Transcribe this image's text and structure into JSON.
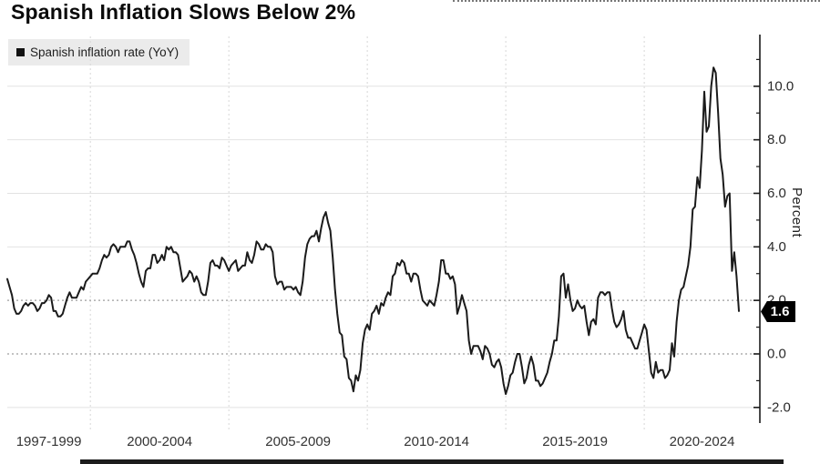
{
  "page": {
    "title": "Spanish Inflation Slows Below 2%"
  },
  "legend": {
    "marker": "black-square",
    "label": "Spanish inflation rate (YoY)"
  },
  "axes": {
    "y_title": "Percent",
    "y_tick_labels": [
      "10.0",
      "8.0",
      "6.0",
      "4.0",
      "2.0",
      "0.0",
      "-2.0"
    ],
    "y_tick_values": [
      10,
      8,
      6,
      4,
      2,
      0,
      -2
    ],
    "y_minor_tick_values": [
      11,
      9,
      7,
      5,
      3,
      1,
      -1
    ],
    "dotted_reference_values": [
      2,
      0
    ],
    "x_labels": [
      "1997-1999",
      "2000-2004",
      "2005-2009",
      "2010-2014",
      "2015-2019",
      "2020-2024"
    ],
    "x_gridline_years": [
      2000,
      2005,
      2010,
      2015,
      2020
    ]
  },
  "last_point": {
    "label": "1.6",
    "value": 1.6
  },
  "colors": {
    "line": "#1b1b1b",
    "axis": "#1b1b1b",
    "grid_solid": "#e2e2e2",
    "grid_dotted": "#9e9e9e",
    "grid_vertical": "#d7d7d7",
    "tick_text": "#2a2a2a",
    "badge_bg": "#000000",
    "badge_text": "#ffffff",
    "legend_bg": "#ebebeb"
  },
  "chart_data": {
    "type": "line",
    "title": "Spanish Inflation Slows Below 2%",
    "series_name": "Spanish inflation rate (YoY)",
    "ylabel": "Percent",
    "frequency": "monthly",
    "x_start": "1997-01",
    "x_end": "2023-06",
    "ylim": [
      -2.6,
      11.9
    ],
    "grid": true,
    "legend_position": "top-left",
    "values": [
      2.8,
      2.5,
      2.2,
      1.7,
      1.5,
      1.5,
      1.6,
      1.8,
      1.9,
      1.8,
      1.9,
      1.9,
      1.8,
      1.6,
      1.7,
      1.9,
      1.9,
      2.0,
      2.2,
      2.1,
      1.6,
      1.6,
      1.4,
      1.4,
      1.5,
      1.8,
      2.1,
      2.3,
      2.1,
      2.1,
      2.1,
      2.3,
      2.5,
      2.4,
      2.7,
      2.8,
      2.9,
      3.0,
      3.0,
      3.0,
      3.2,
      3.5,
      3.7,
      3.6,
      3.7,
      4.0,
      4.1,
      4.0,
      3.8,
      4.0,
      4.0,
      4.0,
      4.2,
      4.2,
      3.9,
      3.7,
      3.4,
      3.0,
      2.7,
      2.5,
      3.1,
      3.2,
      3.2,
      3.7,
      3.7,
      3.4,
      3.5,
      3.7,
      3.5,
      4.0,
      3.9,
      4.0,
      3.8,
      3.8,
      3.7,
      3.2,
      2.7,
      2.8,
      2.9,
      3.1,
      3.0,
      2.7,
      2.9,
      2.7,
      2.3,
      2.2,
      2.2,
      2.7,
      3.4,
      3.5,
      3.3,
      3.3,
      3.2,
      3.6,
      3.5,
      3.3,
      3.1,
      3.3,
      3.4,
      3.5,
      3.1,
      3.2,
      3.3,
      3.3,
      3.8,
      3.5,
      3.4,
      3.7,
      4.2,
      4.1,
      3.9,
      3.9,
      4.1,
      4.0,
      4.0,
      3.8,
      2.9,
      2.6,
      2.7,
      2.7,
      2.4,
      2.5,
      2.5,
      2.5,
      2.4,
      2.5,
      2.3,
      2.2,
      2.7,
      3.6,
      4.1,
      4.3,
      4.4,
      4.4,
      4.6,
      4.2,
      4.7,
      5.1,
      5.3,
      4.9,
      4.6,
      3.6,
      2.4,
      1.5,
      0.8,
      0.7,
      -0.1,
      -0.2,
      -0.9,
      -1.0,
      -1.4,
      -0.8,
      -1.0,
      -0.6,
      0.4,
      0.9,
      1.1,
      0.9,
      1.5,
      1.6,
      1.8,
      1.5,
      1.9,
      1.8,
      2.1,
      2.3,
      2.2,
      2.9,
      3.0,
      3.4,
      3.3,
      3.5,
      3.4,
      3.0,
      3.0,
      2.7,
      3.0,
      3.0,
      2.9,
      2.4,
      2.0,
      1.9,
      1.8,
      2.0,
      1.9,
      1.8,
      2.2,
      2.7,
      3.5,
      3.5,
      3.0,
      3.0,
      2.8,
      2.9,
      2.6,
      1.5,
      1.8,
      2.2,
      1.9,
      1.6,
      0.5,
      0.0,
      0.3,
      0.3,
      0.3,
      0.1,
      -0.2,
      0.3,
      0.2,
      0.0,
      -0.4,
      -0.5,
      -0.3,
      -0.2,
      -0.5,
      -1.1,
      -1.5,
      -1.2,
      -0.8,
      -0.7,
      -0.3,
      0.0,
      0.0,
      -0.5,
      -1.1,
      -0.9,
      -0.4,
      -0.1,
      -0.4,
      -1.0,
      -1.0,
      -1.2,
      -1.1,
      -0.9,
      -0.7,
      -0.3,
      0.0,
      0.5,
      0.5,
      1.4,
      2.9,
      3.0,
      2.1,
      2.6,
      2.0,
      1.6,
      1.7,
      2.0,
      1.8,
      1.7,
      1.8,
      1.2,
      0.7,
      1.2,
      1.3,
      1.1,
      2.1,
      2.3,
      2.3,
      2.2,
      2.3,
      2.3,
      1.7,
      1.2,
      1.0,
      1.1,
      1.3,
      1.6,
      0.9,
      0.6,
      0.6,
      0.4,
      0.2,
      0.2,
      0.5,
      0.8,
      1.1,
      0.9,
      0.1,
      -0.7,
      -0.9,
      -0.3,
      -0.7,
      -0.6,
      -0.6,
      -0.9,
      -0.8,
      -0.6,
      0.4,
      -0.1,
      1.2,
      2.0,
      2.4,
      2.5,
      2.9,
      3.3,
      4.0,
      5.4,
      5.5,
      6.6,
      6.2,
      7.6,
      9.8,
      8.3,
      8.5,
      10.0,
      10.7,
      10.5,
      9.0,
      7.3,
      6.7,
      5.5,
      5.9,
      6.0,
      3.1,
      3.8,
      2.9,
      1.6
    ]
  }
}
